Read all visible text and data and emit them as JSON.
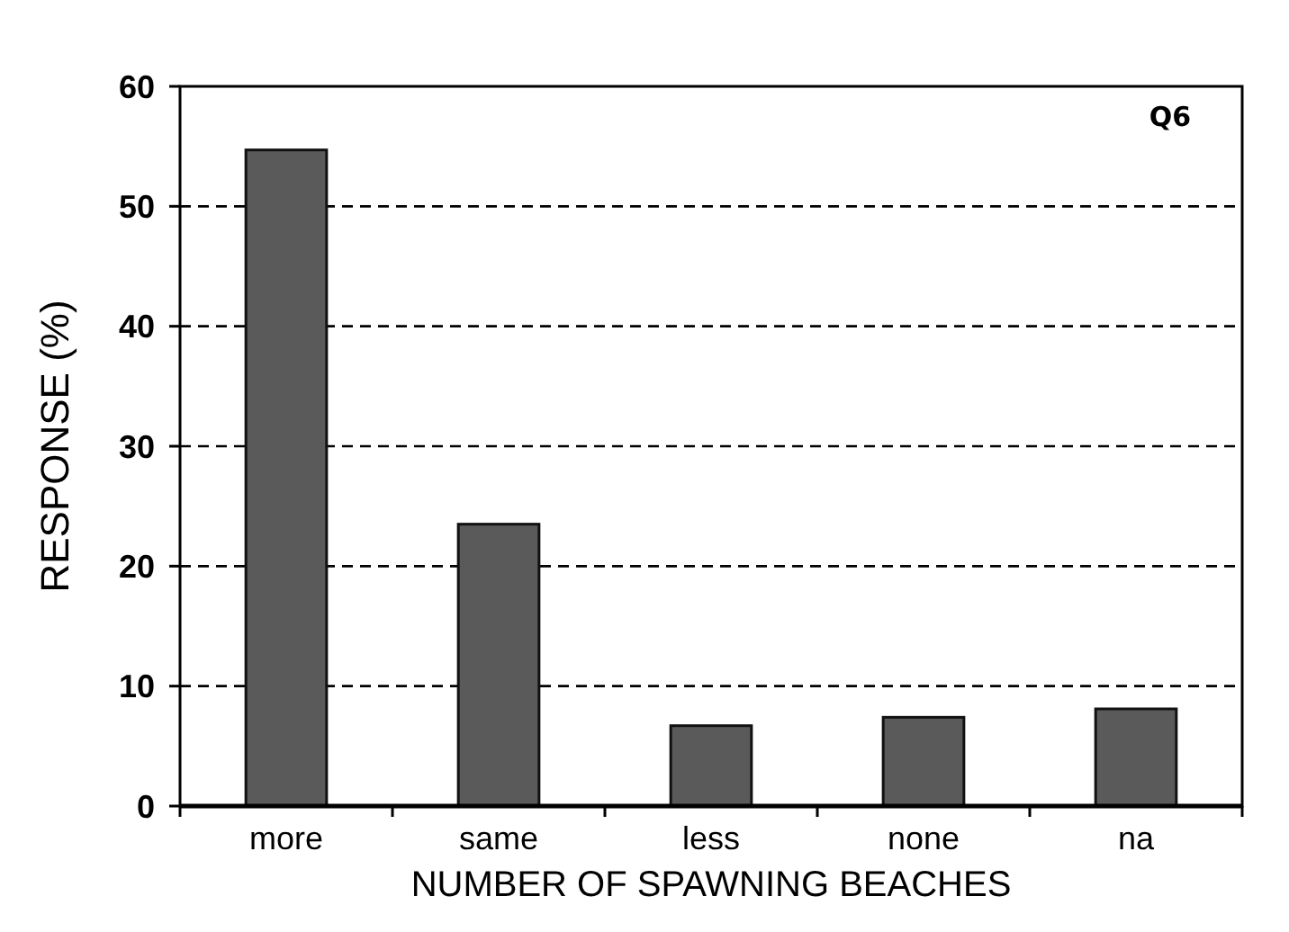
{
  "chart_data": {
    "type": "bar",
    "xlabel": "NUMBER  OF SPAWNING BEACHES",
    "ylabel": "RESPONSE (%)",
    "annotations": [
      "Q6"
    ],
    "categories": [
      "more",
      "same",
      "less",
      "none",
      "na"
    ],
    "values": [
      54.7,
      23.5,
      6.7,
      7.4,
      8.1
    ],
    "color": "#5a5a5a",
    "ylim": [
      0,
      60
    ],
    "yticks": [
      0,
      10,
      20,
      30,
      40,
      50,
      60
    ],
    "grid": "y"
  }
}
